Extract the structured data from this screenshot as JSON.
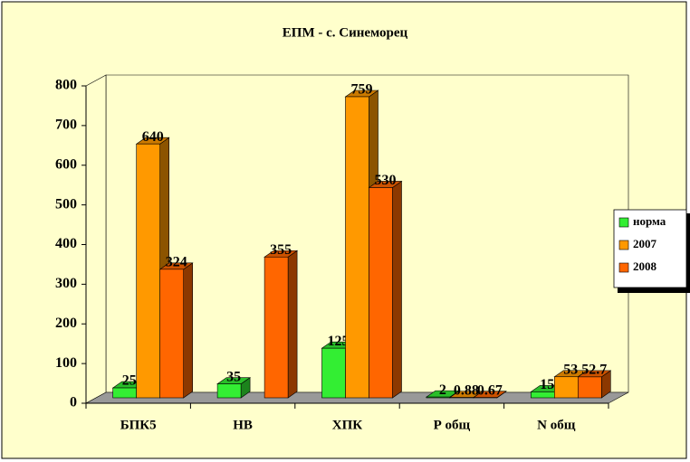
{
  "chart_data": {
    "type": "bar3d",
    "title": "ЕПМ - с. Синеморец",
    "categories": [
      "БПК5",
      "НВ",
      "ХПК",
      "Р общ",
      "N общ"
    ],
    "series": [
      {
        "name": "норма",
        "color": "#33ee33",
        "values": [
          25,
          35,
          125,
          2,
          15
        ]
      },
      {
        "name": "2007",
        "color": "#ff9900",
        "values": [
          640,
          null,
          759,
          0.88,
          53
        ]
      },
      {
        "name": "2008",
        "color": "#ff6600",
        "values": [
          324,
          355,
          530,
          0.67,
          52.7
        ]
      }
    ],
    "ylim": [
      0,
      800
    ],
    "yticks": [
      0,
      100,
      200,
      300,
      400,
      500,
      600,
      700,
      800
    ],
    "legend": "right"
  }
}
